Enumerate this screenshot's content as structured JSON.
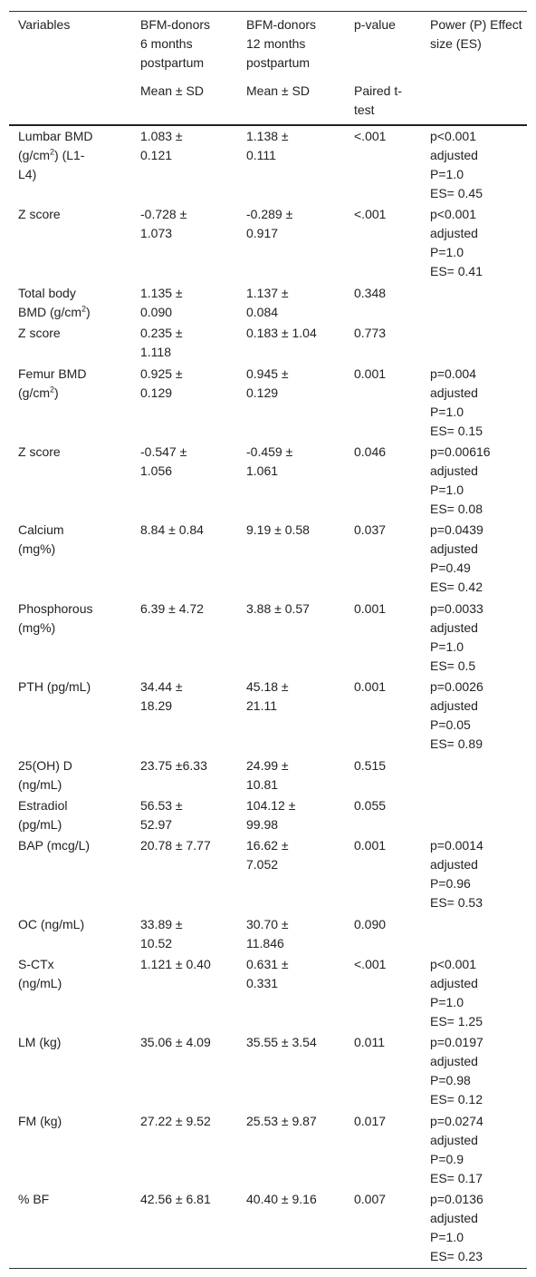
{
  "table": {
    "header": [
      "Variables",
      "BFM-donors 6 months postpartum",
      "BFM-donors 12 months postpartum",
      "p-value",
      "Power (P) Effect size (ES)"
    ],
    "subheader": [
      null,
      "Mean ± SD",
      "Mean ± SD",
      "Paired t-test",
      null
    ],
    "rows": [
      [
        {
          "text": "Lumbar BMD (g/cm",
          "sup": "2",
          "after": ") (L1-L4)"
        },
        "1.083 ± 0.121",
        "1.138 ± 0.111",
        "<.001",
        [
          "p<0.001",
          "adjusted",
          "P=1.0",
          "ES= 0.45"
        ]
      ],
      [
        "Z score",
        "-0.728 ± 1.073",
        "-0.289 ± 0.917",
        "<.001",
        [
          "p<0.001",
          "adjusted",
          "P=1.0",
          "ES= 0.41"
        ]
      ],
      [
        {
          "text": "Total body BMD (g/cm",
          "sup": "2",
          "after": ")"
        },
        "1.135 ± 0.090",
        "1.137 ± 0.084",
        "0.348",
        null
      ],
      [
        "Z score",
        "0.235 ± 1.118",
        "0.183 ± 1.04",
        "0.773",
        null
      ],
      [
        {
          "text": "Femur BMD (g/cm",
          "sup": "2",
          "after": ")"
        },
        "0.925 ± 0.129",
        "0.945 ± 0.129",
        "0.001",
        [
          "p=0.004",
          "adjusted",
          "P=1.0",
          "ES= 0.15"
        ]
      ],
      [
        "Z score",
        "-0.547 ± 1.056",
        "-0.459 ± 1.061",
        "0.046",
        [
          "p=0.00616",
          "adjusted",
          "P=1.0",
          "ES= 0.08"
        ]
      ],
      [
        "Calcium (mg%)",
        "8.84 ± 0.84",
        "9.19 ± 0.58",
        "0.037",
        [
          "p=0.0439",
          "adjusted",
          "P=0.49",
          "ES= 0.42"
        ]
      ],
      [
        "Phosphorous (mg%)",
        "6.39 ± 4.72",
        "3.88 ± 0.57",
        "0.001",
        [
          "p=0.0033",
          "adjusted",
          "P=1.0",
          "ES= 0.5"
        ]
      ],
      [
        "PTH (pg/mL)",
        "34.44 ± 18.29",
        "45.18 ± 21.11",
        "0.001",
        [
          "p=0.0026",
          "adjusted",
          "P=0.05",
          "ES= 0.89"
        ]
      ],
      [
        "25(OH) D (ng/mL)",
        "23.75 ±6.33",
        "24.99 ± 10.81",
        "0.515",
        null
      ],
      [
        "Estradiol (pg/mL)",
        "56.53 ± 52.97",
        "104.12 ± 99.98",
        "0.055",
        null
      ],
      [
        "BAP (mcg/L)",
        "20.78 ± 7.77",
        "16.62 ± 7.052",
        "0.001",
        [
          "p=0.0014",
          "adjusted",
          "P=0.96",
          "ES= 0.53"
        ]
      ],
      [
        "OC (ng/mL)",
        "33.89 ± 10.52",
        "30.70 ± 11.846",
        "0.090",
        null
      ],
      [
        "S-CTx (ng/mL)",
        "1.121 ± 0.40",
        "0.631 ± 0.331",
        "<.001",
        [
          "p<0.001",
          "adjusted",
          "P=1.0",
          "ES= 1.25"
        ]
      ],
      [
        "LM (kg)",
        "35.06 ± 4.09",
        "35.55 ± 3.54",
        "0.011",
        [
          "p=0.0197",
          "adjusted",
          "P=0.98",
          "ES= 0.12"
        ]
      ],
      [
        "FM (kg)",
        "27.22 ± 9.52",
        "25.53 ± 9.87",
        "0.017",
        [
          "p=0.0274",
          "adjusted",
          "P=0.9",
          "ES= 0.17"
        ]
      ],
      [
        "% BF",
        "42.56 ± 6.81",
        "40.40 ± 9.16",
        "0.007",
        [
          "p=0.0136",
          "adjusted",
          "P=1.0",
          "ES= 0.23"
        ]
      ]
    ]
  }
}
